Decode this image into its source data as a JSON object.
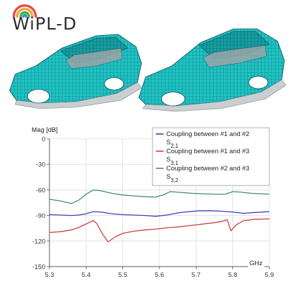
{
  "brand": {
    "logo_text": "WiPL-D",
    "arc_colors": [
      "#e8484d",
      "#f3a531",
      "#3fae49",
      "#2f8fd2"
    ]
  },
  "chart_data": {
    "type": "line",
    "xlabel": "GHz",
    "ylabel": "Mag [dB]",
    "xlim": [
      5.3,
      5.9
    ],
    "ylim": [
      -150,
      0
    ],
    "x_ticks": [
      "5.3",
      "5.4",
      "5.5",
      "5.6",
      "5.7",
      "5.8",
      "5.9"
    ],
    "y_ticks": [
      "0",
      "-30",
      "-60",
      "-90",
      "-120",
      "-150"
    ],
    "grid": true,
    "legend_position": "top-right",
    "series": [
      {
        "name": "Coupling between #1 and #2",
        "sub": "S2,1",
        "color": "#3b3bb5",
        "x": [
          5.3,
          5.33,
          5.36,
          5.38,
          5.4,
          5.42,
          5.44,
          5.47,
          5.5,
          5.53,
          5.56,
          5.59,
          5.62,
          5.65,
          5.68,
          5.71,
          5.74,
          5.77,
          5.8,
          5.83,
          5.86,
          5.9
        ],
        "y": [
          -89,
          -89.5,
          -90,
          -89.5,
          -88,
          -85.5,
          -86,
          -88,
          -89,
          -89.5,
          -90,
          -91,
          -89.5,
          -87,
          -85.5,
          -84.5,
          -84.5,
          -85,
          -86,
          -87.5,
          -86.5,
          -85.5
        ]
      },
      {
        "name": "Coupling between #1 and #3",
        "sub": "S3,1",
        "color": "#d23b3b",
        "x": [
          5.3,
          5.33,
          5.36,
          5.38,
          5.4,
          5.42,
          5.43,
          5.445,
          5.46,
          5.48,
          5.5,
          5.53,
          5.56,
          5.59,
          5.62,
          5.65,
          5.68,
          5.71,
          5.74,
          5.77,
          5.785,
          5.795,
          5.81,
          5.83,
          5.86,
          5.9
        ],
        "y": [
          -110,
          -109,
          -107,
          -104,
          -100,
          -96,
          -100,
          -112,
          -121,
          -115,
          -111,
          -108.5,
          -107,
          -106,
          -104.5,
          -103.5,
          -102,
          -100.5,
          -99,
          -97,
          -95,
          -108,
          -101,
          -96,
          -94.5,
          -94
        ]
      },
      {
        "name": "Coupling between #2 and #3",
        "sub": "S3,2",
        "color": "#3e8e62",
        "x": [
          5.3,
          5.33,
          5.36,
          5.38,
          5.4,
          5.42,
          5.44,
          5.47,
          5.5,
          5.53,
          5.56,
          5.59,
          5.61,
          5.63,
          5.66,
          5.69,
          5.72,
          5.75,
          5.78,
          5.8,
          5.82,
          5.85,
          5.9
        ],
        "y": [
          -71,
          -73,
          -76,
          -72,
          -65,
          -60,
          -61,
          -64,
          -66,
          -67,
          -68,
          -68.5,
          -66,
          -62,
          -63,
          -64,
          -64.5,
          -65,
          -65,
          -62,
          -62.5,
          -64,
          -65
        ]
      }
    ]
  }
}
